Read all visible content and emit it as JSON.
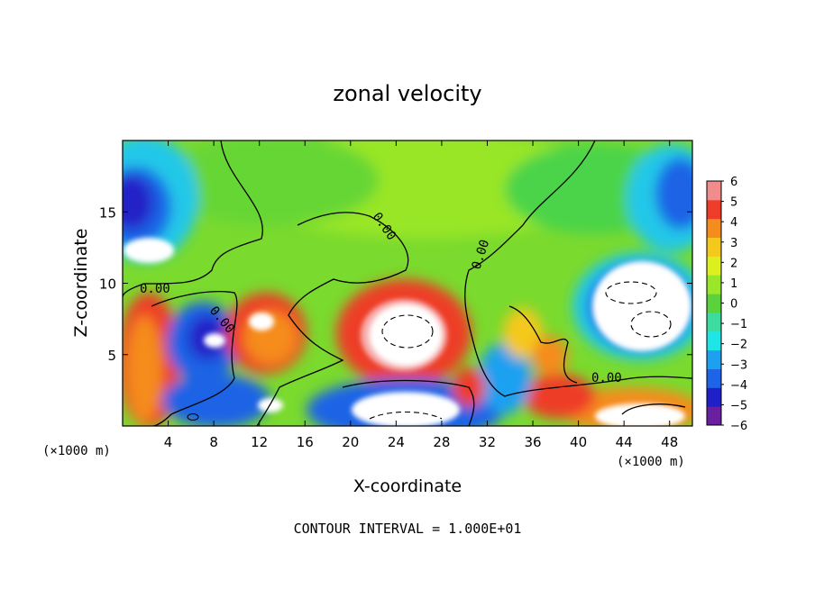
{
  "chart_data": {
    "type": "heatmap",
    "title": "zonal velocity",
    "xlabel": "X-coordinate",
    "ylabel": "Z-coordinate",
    "x_unit": "(×1000 m)",
    "x_unit_right": "(×1000 m)",
    "xlim": [
      0,
      50
    ],
    "ylim": [
      0,
      20
    ],
    "x_ticks": [
      4,
      8,
      12,
      16,
      20,
      24,
      28,
      32,
      36,
      40,
      44,
      48
    ],
    "y_ticks": [
      5,
      10,
      15
    ],
    "colorbar": {
      "min": -6,
      "max": 6,
      "ticks": [
        6,
        5,
        4,
        3,
        2,
        1,
        0,
        -1,
        -2,
        -3,
        -4,
        -5,
        -6
      ],
      "colors": [
        "#6a1fa0",
        "#2020c8",
        "#1e64e6",
        "#1ea0f0",
        "#1ee6e6",
        "#3cdca0",
        "#5ad23c",
        "#9ae62a",
        "#dcf01e",
        "#f5c81e",
        "#f58c1e",
        "#ee3c28",
        "#f08c8c"
      ]
    },
    "contour_labels": [
      "0.00",
      "0.00",
      "0.00",
      "0.00",
      "0.00"
    ],
    "footer": "CONTOUR INTERVAL = 1.000E+01"
  }
}
